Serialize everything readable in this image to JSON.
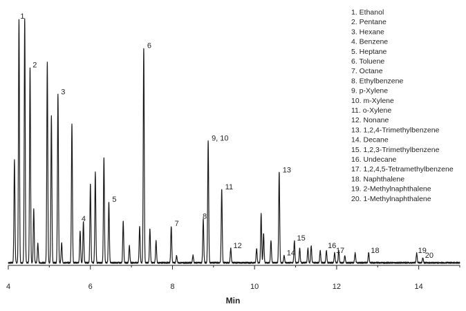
{
  "chart_data": {
    "type": "line",
    "title": "",
    "xlabel": "Min",
    "ylabel": "",
    "xlim": [
      4,
      15
    ],
    "ylim": [
      0,
      100
    ],
    "x_ticks": [
      4,
      6,
      8,
      10,
      12,
      14
    ],
    "grid": false,
    "legend_position": "top-right",
    "line_color": "#1a1a1a",
    "peaks": [
      {
        "t": 4.15,
        "h": 42
      },
      {
        "t": 4.26,
        "h": 100
      },
      {
        "t": 4.4,
        "h": 100
      },
      {
        "t": 4.53,
        "h": 80
      },
      {
        "t": 4.62,
        "h": 22
      },
      {
        "t": 4.72,
        "h": 8
      },
      {
        "t": 4.95,
        "h": 82
      },
      {
        "t": 5.05,
        "h": 60
      },
      {
        "t": 5.21,
        "h": 69
      },
      {
        "t": 5.3,
        "h": 8
      },
      {
        "t": 5.55,
        "h": 57
      },
      {
        "t": 5.75,
        "h": 13
      },
      {
        "t": 5.83,
        "h": 17
      },
      {
        "t": 6.0,
        "h": 32
      },
      {
        "t": 6.12,
        "h": 37
      },
      {
        "t": 6.33,
        "h": 43
      },
      {
        "t": 6.45,
        "h": 25
      },
      {
        "t": 6.8,
        "h": 17
      },
      {
        "t": 6.95,
        "h": 7
      },
      {
        "t": 7.2,
        "h": 15
      },
      {
        "t": 7.3,
        "h": 88
      },
      {
        "t": 7.45,
        "h": 14
      },
      {
        "t": 7.6,
        "h": 9
      },
      {
        "t": 7.97,
        "h": 15
      },
      {
        "t": 8.1,
        "h": 3
      },
      {
        "t": 8.5,
        "h": 3
      },
      {
        "t": 8.75,
        "h": 18
      },
      {
        "t": 8.87,
        "h": 50
      },
      {
        "t": 9.2,
        "h": 30
      },
      {
        "t": 9.42,
        "h": 6
      },
      {
        "t": 10.05,
        "h": 6
      },
      {
        "t": 10.16,
        "h": 20
      },
      {
        "t": 10.22,
        "h": 12
      },
      {
        "t": 10.4,
        "h": 9
      },
      {
        "t": 10.6,
        "h": 37
      },
      {
        "t": 10.72,
        "h": 3
      },
      {
        "t": 10.97,
        "h": 9
      },
      {
        "t": 11.1,
        "h": 6
      },
      {
        "t": 11.3,
        "h": 6
      },
      {
        "t": 11.38,
        "h": 7
      },
      {
        "t": 11.6,
        "h": 5
      },
      {
        "t": 11.75,
        "h": 5
      },
      {
        "t": 11.95,
        "h": 4
      },
      {
        "t": 12.05,
        "h": 5
      },
      {
        "t": 12.2,
        "h": 3
      },
      {
        "t": 12.45,
        "h": 4
      },
      {
        "t": 12.78,
        "h": 4
      },
      {
        "t": 13.95,
        "h": 4
      },
      {
        "t": 14.1,
        "h": 2
      }
    ],
    "annotations": [
      {
        "text": "1",
        "t": 4.26,
        "h": 100
      },
      {
        "text": "2",
        "t": 4.56,
        "h": 80
      },
      {
        "text": "3",
        "t": 5.25,
        "h": 69
      },
      {
        "text": "4",
        "t": 5.75,
        "h": 17
      },
      {
        "text": "5",
        "t": 6.5,
        "h": 25
      },
      {
        "text": "6",
        "t": 7.35,
        "h": 88
      },
      {
        "text": "7",
        "t": 8.02,
        "h": 15
      },
      {
        "text": "8",
        "t": 8.7,
        "h": 18
      },
      {
        "text": "9, 10",
        "t": 8.92,
        "h": 50
      },
      {
        "text": "11",
        "t": 9.25,
        "h": 30
      },
      {
        "text": "12",
        "t": 9.45,
        "h": 6
      },
      {
        "text": "13",
        "t": 10.65,
        "h": 37
      },
      {
        "text": "14",
        "t": 10.75,
        "h": 3
      },
      {
        "text": "15",
        "t": 11.0,
        "h": 9
      },
      {
        "text": "16",
        "t": 11.75,
        "h": 6
      },
      {
        "text": "17",
        "t": 11.95,
        "h": 4
      },
      {
        "text": "18",
        "t": 12.8,
        "h": 4
      },
      {
        "text": "19",
        "t": 13.95,
        "h": 4
      },
      {
        "text": "20",
        "t": 14.12,
        "h": 2
      }
    ],
    "legend": [
      "1. Ethanol",
      "2. Pentane",
      "3. Hexane",
      "4. Benzene",
      "5. Heptane",
      "6. Toluene",
      "7. Octane",
      "8. Ethylbenzene",
      "9. p-Xylene",
      "10. m-Xylene",
      "11. o-Xylene",
      "12. Nonane",
      "13. 1,2,4-Trimethylbenzene",
      "14. Decane",
      "15. 1,2,3-Trimethylbenzene",
      "16. Undecane",
      "17. 1,2,4,5-Tetramethylbenzene",
      "18. Naphthalene",
      "19. 2-Methylnaphthalene",
      "20. 1-Methylnaphthalene"
    ]
  }
}
